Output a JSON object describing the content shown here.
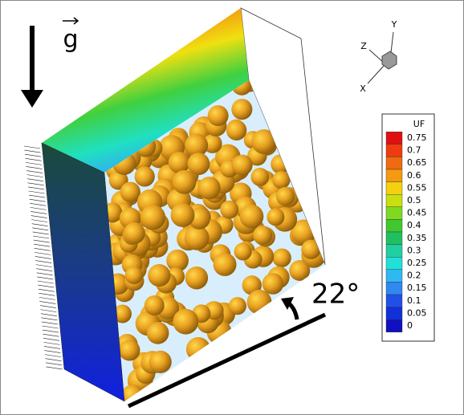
{
  "annotations": {
    "gravity": "g",
    "angle": "22°"
  },
  "axes_triad": {
    "x": "X",
    "y": "Y",
    "z": "Z"
  },
  "legend": {
    "title": "UF",
    "ticks": [
      0.75,
      0.7,
      0.65,
      0.6,
      0.55,
      0.5,
      0.45,
      0.4,
      0.35,
      0.3,
      0.25,
      0.2,
      0.15,
      0.1,
      0.05,
      0
    ]
  }
}
